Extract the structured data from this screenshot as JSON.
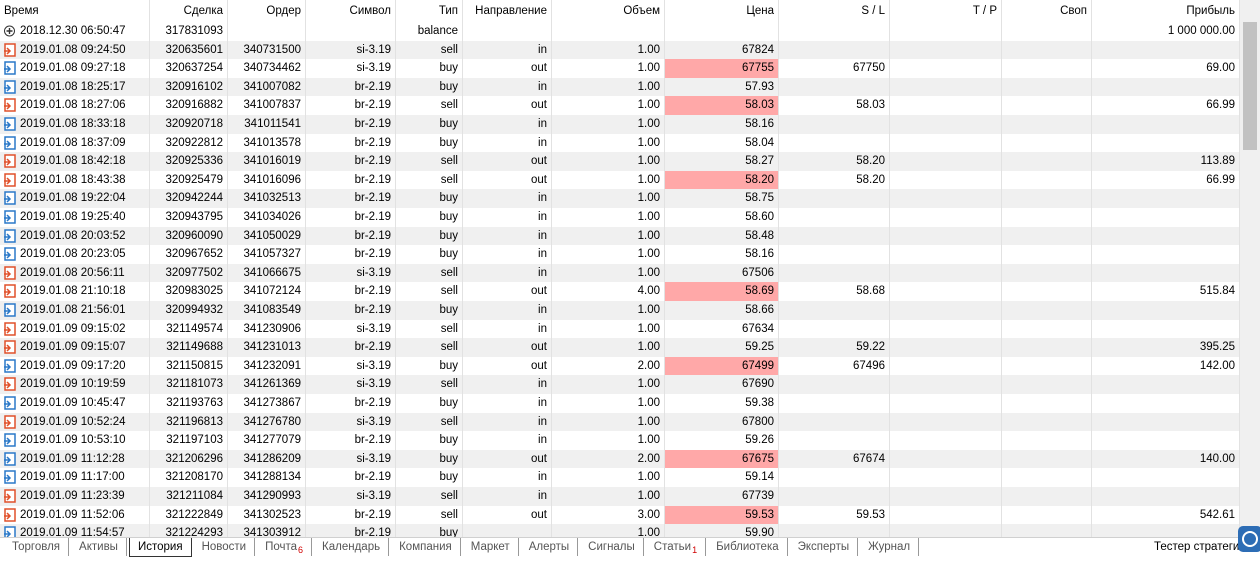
{
  "columns": [
    "Время",
    "Сделка",
    "Ордер",
    "Символ",
    "Тип",
    "Направление",
    "Объем",
    "Цена",
    "S / L",
    "T / P",
    "Своп",
    "Прибыль"
  ],
  "rows": [
    {
      "time": "2018.12.30 06:50:47",
      "deal": "317831093",
      "type": "balance",
      "profit": "1 000 000.00"
    },
    {
      "time": "2019.01.08 09:24:50",
      "deal": "320635601",
      "order": "340731500",
      "symbol": "si-3.19",
      "type": "sell",
      "dir": "in",
      "vol": "1.00",
      "price": "67824"
    },
    {
      "time": "2019.01.08 09:27:18",
      "deal": "320637254",
      "order": "340734462",
      "symbol": "si-3.19",
      "type": "buy",
      "dir": "out",
      "vol": "1.00",
      "price": "67755",
      "sl": "67750",
      "profit": "69.00",
      "highlight": true
    },
    {
      "time": "2019.01.08 18:25:17",
      "deal": "320916102",
      "order": "341007082",
      "symbol": "br-2.19",
      "type": "buy",
      "dir": "in",
      "vol": "1.00",
      "price": "57.93"
    },
    {
      "time": "2019.01.08 18:27:06",
      "deal": "320916882",
      "order": "341007837",
      "symbol": "br-2.19",
      "type": "sell",
      "dir": "out",
      "vol": "1.00",
      "price": "58.03",
      "sl": "58.03",
      "profit": "66.99",
      "highlight": true
    },
    {
      "time": "2019.01.08 18:33:18",
      "deal": "320920718",
      "order": "341011541",
      "symbol": "br-2.19",
      "type": "buy",
      "dir": "in",
      "vol": "1.00",
      "price": "58.16"
    },
    {
      "time": "2019.01.08 18:37:09",
      "deal": "320922812",
      "order": "341013578",
      "symbol": "br-2.19",
      "type": "buy",
      "dir": "in",
      "vol": "1.00",
      "price": "58.04"
    },
    {
      "time": "2019.01.08 18:42:18",
      "deal": "320925336",
      "order": "341016019",
      "symbol": "br-2.19",
      "type": "sell",
      "dir": "out",
      "vol": "1.00",
      "price": "58.27",
      "sl": "58.20",
      "profit": "113.89"
    },
    {
      "time": "2019.01.08 18:43:38",
      "deal": "320925479",
      "order": "341016096",
      "symbol": "br-2.19",
      "type": "sell",
      "dir": "out",
      "vol": "1.00",
      "price": "58.20",
      "sl": "58.20",
      "profit": "66.99",
      "highlight": true
    },
    {
      "time": "2019.01.08 19:22:04",
      "deal": "320942244",
      "order": "341032513",
      "symbol": "br-2.19",
      "type": "buy",
      "dir": "in",
      "vol": "1.00",
      "price": "58.75"
    },
    {
      "time": "2019.01.08 19:25:40",
      "deal": "320943795",
      "order": "341034026",
      "symbol": "br-2.19",
      "type": "buy",
      "dir": "in",
      "vol": "1.00",
      "price": "58.60"
    },
    {
      "time": "2019.01.08 20:03:52",
      "deal": "320960090",
      "order": "341050029",
      "symbol": "br-2.19",
      "type": "buy",
      "dir": "in",
      "vol": "1.00",
      "price": "58.48"
    },
    {
      "time": "2019.01.08 20:23:05",
      "deal": "320967652",
      "order": "341057327",
      "symbol": "br-2.19",
      "type": "buy",
      "dir": "in",
      "vol": "1.00",
      "price": "58.16"
    },
    {
      "time": "2019.01.08 20:56:11",
      "deal": "320977502",
      "order": "341066675",
      "symbol": "si-3.19",
      "type": "sell",
      "dir": "in",
      "vol": "1.00",
      "price": "67506"
    },
    {
      "time": "2019.01.08 21:10:18",
      "deal": "320983025",
      "order": "341072124",
      "symbol": "br-2.19",
      "type": "sell",
      "dir": "out",
      "vol": "4.00",
      "price": "58.69",
      "sl": "58.68",
      "profit": "515.84",
      "highlight": true
    },
    {
      "time": "2019.01.08 21:56:01",
      "deal": "320994932",
      "order": "341083549",
      "symbol": "br-2.19",
      "type": "buy",
      "dir": "in",
      "vol": "1.00",
      "price": "58.66"
    },
    {
      "time": "2019.01.09 09:15:02",
      "deal": "321149574",
      "order": "341230906",
      "symbol": "si-3.19",
      "type": "sell",
      "dir": "in",
      "vol": "1.00",
      "price": "67634"
    },
    {
      "time": "2019.01.09 09:15:07",
      "deal": "321149688",
      "order": "341231013",
      "symbol": "br-2.19",
      "type": "sell",
      "dir": "out",
      "vol": "1.00",
      "price": "59.25",
      "sl": "59.22",
      "profit": "395.25"
    },
    {
      "time": "2019.01.09 09:17:20",
      "deal": "321150815",
      "order": "341232091",
      "symbol": "si-3.19",
      "type": "buy",
      "dir": "out",
      "vol": "2.00",
      "price": "67499",
      "sl": "67496",
      "profit": "142.00",
      "highlight": true
    },
    {
      "time": "2019.01.09 10:19:59",
      "deal": "321181073",
      "order": "341261369",
      "symbol": "si-3.19",
      "type": "sell",
      "dir": "in",
      "vol": "1.00",
      "price": "67690"
    },
    {
      "time": "2019.01.09 10:45:47",
      "deal": "321193763",
      "order": "341273867",
      "symbol": "br-2.19",
      "type": "buy",
      "dir": "in",
      "vol": "1.00",
      "price": "59.38"
    },
    {
      "time": "2019.01.09 10:52:24",
      "deal": "321196813",
      "order": "341276780",
      "symbol": "si-3.19",
      "type": "sell",
      "dir": "in",
      "vol": "1.00",
      "price": "67800"
    },
    {
      "time": "2019.01.09 10:53:10",
      "deal": "321197103",
      "order": "341277079",
      "symbol": "br-2.19",
      "type": "buy",
      "dir": "in",
      "vol": "1.00",
      "price": "59.26"
    },
    {
      "time": "2019.01.09 11:12:28",
      "deal": "321206296",
      "order": "341286209",
      "symbol": "si-3.19",
      "type": "buy",
      "dir": "out",
      "vol": "2.00",
      "price": "67675",
      "sl": "67674",
      "profit": "140.00",
      "highlight": true
    },
    {
      "time": "2019.01.09 11:17:00",
      "deal": "321208170",
      "order": "341288134",
      "symbol": "br-2.19",
      "type": "buy",
      "dir": "in",
      "vol": "1.00",
      "price": "59.14"
    },
    {
      "time": "2019.01.09 11:23:39",
      "deal": "321211084",
      "order": "341290993",
      "symbol": "si-3.19",
      "type": "sell",
      "dir": "in",
      "vol": "1.00",
      "price": "67739"
    },
    {
      "time": "2019.01.09 11:52:06",
      "deal": "321222849",
      "order": "341302523",
      "symbol": "br-2.19",
      "type": "sell",
      "dir": "out",
      "vol": "3.00",
      "price": "59.53",
      "sl": "59.53",
      "profit": "542.61",
      "highlight": true
    },
    {
      "time": "2019.01.09 11:54:57",
      "deal": "321224293",
      "order": "341303912",
      "symbol": "br-2.19",
      "type": "buy",
      "vol": "1.00",
      "price": "59.90"
    }
  ],
  "tabs": [
    {
      "label": "Торговля"
    },
    {
      "label": "Активы"
    },
    {
      "label": "История",
      "active": true
    },
    {
      "label": "Новости"
    },
    {
      "label": "Почта",
      "badge": "6"
    },
    {
      "label": "Календарь"
    },
    {
      "label": "Компания"
    },
    {
      "label": "Маркет"
    },
    {
      "label": "Алерты"
    },
    {
      "label": "Сигналы"
    },
    {
      "label": "Статьи",
      "badge": "1"
    },
    {
      "label": "Библиотека"
    },
    {
      "label": "Эксперты"
    },
    {
      "label": "Журнал"
    }
  ],
  "right_tab": "Тестер стратеги"
}
